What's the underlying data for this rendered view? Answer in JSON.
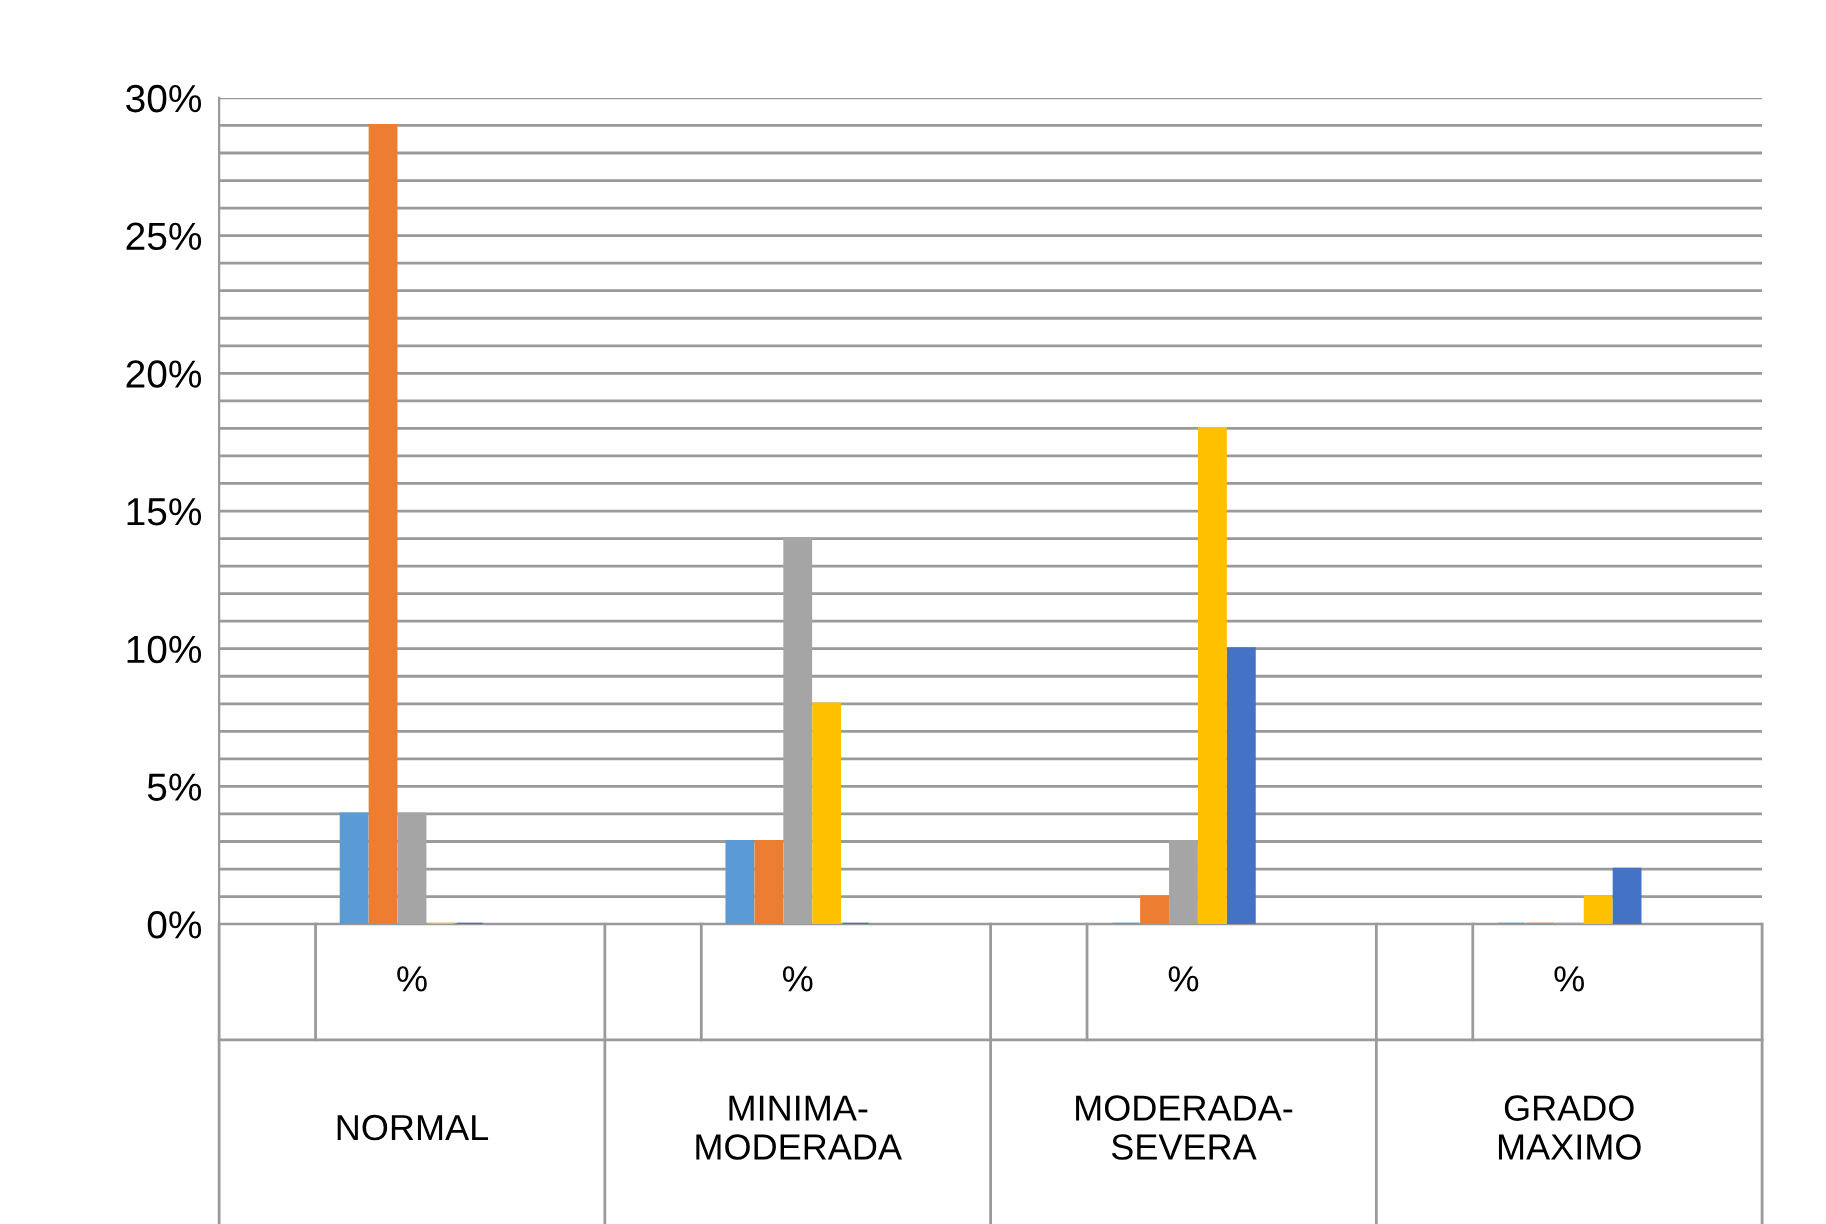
{
  "chart_data": {
    "type": "bar",
    "categories": [
      "NORMAL",
      "MINIMA-\nMODERADA",
      "MODERADA-\nSEVERA",
      "GRADO\nMAXIMO"
    ],
    "series": [
      {
        "color": "#5b9bd5",
        "values": [
          4,
          3,
          0,
          0
        ]
      },
      {
        "color": "#ed7d31",
        "values": [
          29,
          3,
          1,
          0
        ]
      },
      {
        "color": "#a5a5a5",
        "values": [
          4,
          14,
          3,
          0
        ]
      },
      {
        "color": "#ffc000",
        "values": [
          0,
          8,
          18,
          1
        ]
      },
      {
        "color": "#4472c4",
        "values": [
          0,
          0,
          10,
          2
        ]
      }
    ],
    "annotations": [
      "%",
      "%",
      "%",
      "%"
    ],
    "ylim": [
      0,
      30
    ],
    "yticks": [
      {
        "value": 0,
        "label": "0%"
      },
      {
        "value": 1,
        "label": null
      },
      {
        "value": 2,
        "label": null
      },
      {
        "value": 3,
        "label": null
      },
      {
        "value": 4,
        "label": null
      },
      {
        "value": 5,
        "label": "5%"
      },
      {
        "value": 6,
        "label": null
      },
      {
        "value": 7,
        "label": null
      },
      {
        "value": 8,
        "label": null
      },
      {
        "value": 9,
        "label": null
      },
      {
        "value": 10,
        "label": "10%"
      },
      {
        "value": 11,
        "label": null
      },
      {
        "value": 12,
        "label": null
      },
      {
        "value": 13,
        "label": null
      },
      {
        "value": 14,
        "label": null
      },
      {
        "value": 15,
        "label": "15%"
      },
      {
        "value": 16,
        "label": null
      },
      {
        "value": 17,
        "label": null
      },
      {
        "value": 18,
        "label": null
      },
      {
        "value": 19,
        "label": null
      },
      {
        "value": 20,
        "label": "20%"
      },
      {
        "value": 21,
        "label": null
      },
      {
        "value": 22,
        "label": null
      },
      {
        "value": 23,
        "label": null
      },
      {
        "value": 24,
        "label": null
      },
      {
        "value": 25,
        "label": "25%"
      },
      {
        "value": 26,
        "label": null
      },
      {
        "value": 27,
        "label": null
      },
      {
        "value": 28,
        "label": null
      },
      {
        "value": 29,
        "label": null
      },
      {
        "value": 30,
        "label": "30%"
      }
    ],
    "grid": "y"
  }
}
